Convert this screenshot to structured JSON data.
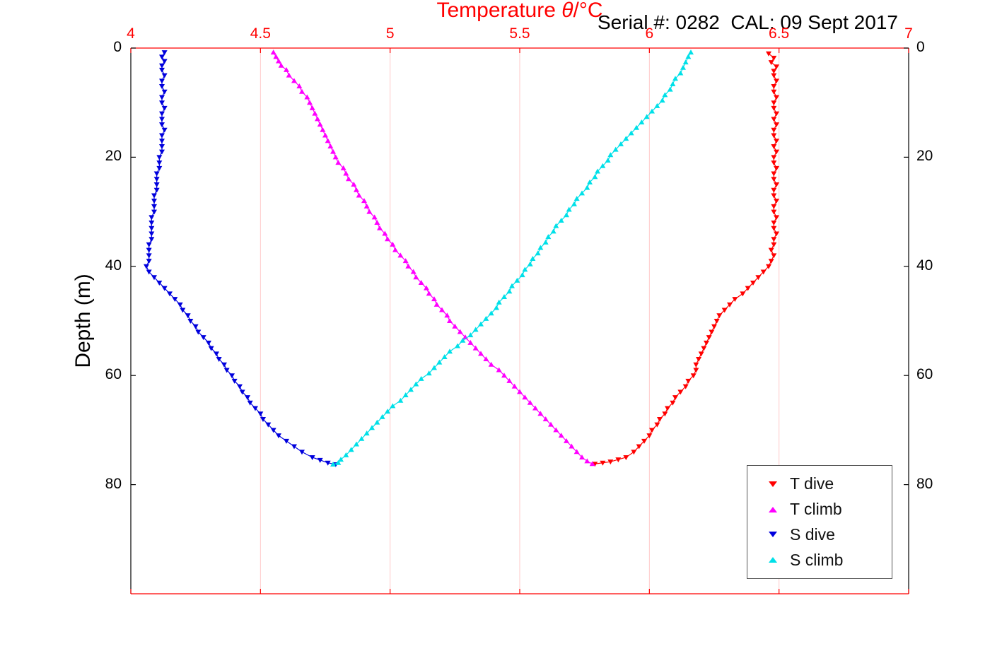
{
  "title": {
    "prefix": "Temperature ",
    "theta": "θ",
    "suffix": "/°C"
  },
  "annotation": "Serial #: 0282  CAL: 09 Sept 2017",
  "axes": {
    "ylabel": "Depth (m)",
    "x_ticks": [
      4,
      4.5,
      5,
      5.5,
      6,
      6.5,
      7
    ],
    "y_ticks": [
      0,
      20,
      40,
      60,
      80
    ],
    "x_range": [
      4,
      7
    ],
    "y_range": [
      0,
      100
    ],
    "x_color": "#ff0000",
    "y_color": "#000000",
    "grid_color": "#ffc9c9"
  },
  "chart_data": {
    "type": "scatter",
    "title": "Temperature θ/°C",
    "xlabel": "Temperature θ/°C",
    "ylabel": "Depth (m)",
    "xlim": [
      4,
      7
    ],
    "ylim": [
      0,
      100
    ],
    "y_inverted": true,
    "grid": "vertical-only",
    "legend_position": "lower right",
    "series": [
      {
        "name": "T dive",
        "color": "#ff0000",
        "marker": "down",
        "points": [
          [
            6.46,
            1
          ],
          [
            6.48,
            1.8
          ],
          [
            6.47,
            2.6
          ],
          [
            6.49,
            3.4
          ],
          [
            6.48,
            4.2
          ],
          [
            6.48,
            5
          ],
          [
            6.49,
            6
          ],
          [
            6.48,
            7
          ],
          [
            6.48,
            8
          ],
          [
            6.49,
            9
          ],
          [
            6.48,
            10
          ],
          [
            6.48,
            11
          ],
          [
            6.49,
            12
          ],
          [
            6.48,
            13
          ],
          [
            6.49,
            14
          ],
          [
            6.48,
            15
          ],
          [
            6.48,
            16
          ],
          [
            6.49,
            17
          ],
          [
            6.48,
            18
          ],
          [
            6.49,
            19
          ],
          [
            6.48,
            20
          ],
          [
            6.48,
            21
          ],
          [
            6.49,
            22
          ],
          [
            6.48,
            23
          ],
          [
            6.48,
            24
          ],
          [
            6.49,
            25
          ],
          [
            6.48,
            26
          ],
          [
            6.48,
            27
          ],
          [
            6.49,
            28
          ],
          [
            6.48,
            29
          ],
          [
            6.48,
            30
          ],
          [
            6.49,
            31
          ],
          [
            6.48,
            32
          ],
          [
            6.48,
            33
          ],
          [
            6.49,
            34
          ],
          [
            6.48,
            35
          ],
          [
            6.48,
            36
          ],
          [
            6.47,
            37
          ],
          [
            6.48,
            38
          ],
          [
            6.47,
            39
          ],
          [
            6.46,
            40
          ],
          [
            6.44,
            41
          ],
          [
            6.42,
            42
          ],
          [
            6.4,
            43
          ],
          [
            6.38,
            44
          ],
          [
            6.36,
            45
          ],
          [
            6.33,
            46
          ],
          [
            6.31,
            47
          ],
          [
            6.29,
            48
          ],
          [
            6.27,
            49
          ],
          [
            6.26,
            50
          ],
          [
            6.25,
            51
          ],
          [
            6.24,
            52
          ],
          [
            6.23,
            53
          ],
          [
            6.22,
            54
          ],
          [
            6.21,
            55
          ],
          [
            6.2,
            56
          ],
          [
            6.19,
            57
          ],
          [
            6.18,
            58
          ],
          [
            6.18,
            59
          ],
          [
            6.17,
            60
          ],
          [
            6.15,
            61
          ],
          [
            6.14,
            62
          ],
          [
            6.12,
            63
          ],
          [
            6.1,
            64
          ],
          [
            6.09,
            65
          ],
          [
            6.07,
            66
          ],
          [
            6.06,
            67
          ],
          [
            6.04,
            68
          ],
          [
            6.03,
            69
          ],
          [
            6.01,
            70
          ],
          [
            6.0,
            71
          ],
          [
            5.98,
            72
          ],
          [
            5.96,
            73
          ],
          [
            5.94,
            74
          ],
          [
            5.91,
            75
          ],
          [
            5.88,
            75.4
          ],
          [
            5.85,
            75.8
          ],
          [
            5.82,
            76
          ],
          [
            5.79,
            76.2
          ]
        ]
      },
      {
        "name": "T climb",
        "color": "#ff00ff",
        "marker": "up",
        "points": [
          [
            4.55,
            0.8
          ],
          [
            4.56,
            1.6
          ],
          [
            4.57,
            2.4
          ],
          [
            4.58,
            3.2
          ],
          [
            4.6,
            4
          ],
          [
            4.61,
            5
          ],
          [
            4.63,
            6
          ],
          [
            4.65,
            7
          ],
          [
            4.66,
            8
          ],
          [
            4.68,
            9
          ],
          [
            4.69,
            10
          ],
          [
            4.7,
            11
          ],
          [
            4.71,
            12
          ],
          [
            4.72,
            13
          ],
          [
            4.73,
            14
          ],
          [
            4.74,
            15
          ],
          [
            4.75,
            16
          ],
          [
            4.76,
            17
          ],
          [
            4.77,
            18
          ],
          [
            4.78,
            19
          ],
          [
            4.79,
            20
          ],
          [
            4.8,
            21
          ],
          [
            4.82,
            22
          ],
          [
            4.83,
            23
          ],
          [
            4.84,
            24
          ],
          [
            4.86,
            25
          ],
          [
            4.87,
            26
          ],
          [
            4.88,
            27
          ],
          [
            4.9,
            28
          ],
          [
            4.91,
            29
          ],
          [
            4.92,
            30
          ],
          [
            4.94,
            31
          ],
          [
            4.95,
            32
          ],
          [
            4.96,
            33
          ],
          [
            4.98,
            34
          ],
          [
            4.99,
            35
          ],
          [
            5.01,
            36
          ],
          [
            5.02,
            37
          ],
          [
            5.04,
            38
          ],
          [
            5.06,
            39
          ],
          [
            5.07,
            40
          ],
          [
            5.09,
            41
          ],
          [
            5.1,
            42
          ],
          [
            5.12,
            43
          ],
          [
            5.14,
            44
          ],
          [
            5.15,
            45
          ],
          [
            5.17,
            46
          ],
          [
            5.18,
            47
          ],
          [
            5.2,
            48
          ],
          [
            5.22,
            49
          ],
          [
            5.23,
            50
          ],
          [
            5.25,
            51
          ],
          [
            5.27,
            52
          ],
          [
            5.29,
            53
          ],
          [
            5.31,
            54
          ],
          [
            5.33,
            55
          ],
          [
            5.35,
            56
          ],
          [
            5.37,
            57
          ],
          [
            5.39,
            58
          ],
          [
            5.42,
            59
          ],
          [
            5.44,
            60
          ],
          [
            5.46,
            61
          ],
          [
            5.48,
            62
          ],
          [
            5.5,
            63
          ],
          [
            5.52,
            64
          ],
          [
            5.54,
            65
          ],
          [
            5.56,
            66
          ],
          [
            5.58,
            67
          ],
          [
            5.6,
            68
          ],
          [
            5.62,
            69
          ],
          [
            5.64,
            70
          ],
          [
            5.66,
            71
          ],
          [
            5.68,
            72
          ],
          [
            5.7,
            73
          ],
          [
            5.72,
            74
          ],
          [
            5.74,
            75
          ],
          [
            5.76,
            75.7
          ],
          [
            5.78,
            76.2
          ]
        ]
      },
      {
        "name": "S dive",
        "color": "#0000dd",
        "marker": "down",
        "points": [
          [
            4.13,
            0.8
          ],
          [
            4.12,
            1.6
          ],
          [
            4.13,
            2.4
          ],
          [
            4.12,
            3.2
          ],
          [
            4.12,
            4
          ],
          [
            4.13,
            5
          ],
          [
            4.12,
            6
          ],
          [
            4.12,
            7
          ],
          [
            4.13,
            8
          ],
          [
            4.12,
            9
          ],
          [
            4.12,
            10
          ],
          [
            4.13,
            11
          ],
          [
            4.12,
            12
          ],
          [
            4.12,
            13
          ],
          [
            4.12,
            14
          ],
          [
            4.13,
            15
          ],
          [
            4.12,
            16
          ],
          [
            4.12,
            17
          ],
          [
            4.12,
            18
          ],
          [
            4.12,
            19
          ],
          [
            4.11,
            20
          ],
          [
            4.11,
            21
          ],
          [
            4.11,
            22
          ],
          [
            4.1,
            23
          ],
          [
            4.1,
            24
          ],
          [
            4.1,
            25
          ],
          [
            4.1,
            26
          ],
          [
            4.09,
            27
          ],
          [
            4.09,
            28
          ],
          [
            4.09,
            29
          ],
          [
            4.09,
            30
          ],
          [
            4.08,
            31
          ],
          [
            4.08,
            32
          ],
          [
            4.08,
            33
          ],
          [
            4.08,
            34
          ],
          [
            4.08,
            35
          ],
          [
            4.07,
            36
          ],
          [
            4.07,
            37
          ],
          [
            4.07,
            38
          ],
          [
            4.07,
            39
          ],
          [
            4.06,
            40
          ],
          [
            4.07,
            41
          ],
          [
            4.09,
            42
          ],
          [
            4.11,
            43
          ],
          [
            4.13,
            44
          ],
          [
            4.15,
            45
          ],
          [
            4.17,
            46
          ],
          [
            4.19,
            47
          ],
          [
            4.2,
            48
          ],
          [
            4.22,
            49
          ],
          [
            4.23,
            50
          ],
          [
            4.25,
            51
          ],
          [
            4.26,
            52
          ],
          [
            4.28,
            53
          ],
          [
            4.3,
            54
          ],
          [
            4.31,
            55
          ],
          [
            4.33,
            56
          ],
          [
            4.34,
            57
          ],
          [
            4.36,
            58
          ],
          [
            4.37,
            59
          ],
          [
            4.39,
            60
          ],
          [
            4.4,
            61
          ],
          [
            4.42,
            62
          ],
          [
            4.43,
            63
          ],
          [
            4.45,
            64
          ],
          [
            4.46,
            65
          ],
          [
            4.48,
            66
          ],
          [
            4.5,
            67
          ],
          [
            4.51,
            68
          ],
          [
            4.53,
            69
          ],
          [
            4.55,
            70
          ],
          [
            4.57,
            71
          ],
          [
            4.6,
            72
          ],
          [
            4.63,
            73
          ],
          [
            4.66,
            74
          ],
          [
            4.7,
            75
          ],
          [
            4.73,
            75.5
          ],
          [
            4.76,
            76
          ],
          [
            4.79,
            76.3
          ]
        ]
      },
      {
        "name": "S climb",
        "color": "#00e0e8",
        "marker": "up",
        "points": [
          [
            6.16,
            0.8
          ],
          [
            6.15,
            1.6
          ],
          [
            6.14,
            2.6
          ],
          [
            6.13,
            3.6
          ],
          [
            6.12,
            4.6
          ],
          [
            6.1,
            5.6
          ],
          [
            6.09,
            6.6
          ],
          [
            6.08,
            7.6
          ],
          [
            6.06,
            8.6
          ],
          [
            6.05,
            9.6
          ],
          [
            6.03,
            10.6
          ],
          [
            6.01,
            11.6
          ],
          [
            5.99,
            12.6
          ],
          [
            5.97,
            13.6
          ],
          [
            5.95,
            14.6
          ],
          [
            5.93,
            15.6
          ],
          [
            5.91,
            16.6
          ],
          [
            5.89,
            17.6
          ],
          [
            5.87,
            18.6
          ],
          [
            5.85,
            19.6
          ],
          [
            5.84,
            20.6
          ],
          [
            5.82,
            21.6
          ],
          [
            5.8,
            22.6
          ],
          [
            5.79,
            23.6
          ],
          [
            5.77,
            24.6
          ],
          [
            5.76,
            25.6
          ],
          [
            5.74,
            26.6
          ],
          [
            5.72,
            27.6
          ],
          [
            5.71,
            28.6
          ],
          [
            5.69,
            29.6
          ],
          [
            5.68,
            30.6
          ],
          [
            5.66,
            31.6
          ],
          [
            5.64,
            32.6
          ],
          [
            5.63,
            33.6
          ],
          [
            5.61,
            34.6
          ],
          [
            5.6,
            35.6
          ],
          [
            5.58,
            36.6
          ],
          [
            5.57,
            37.6
          ],
          [
            5.55,
            38.6
          ],
          [
            5.54,
            39.6
          ],
          [
            5.52,
            40.6
          ],
          [
            5.51,
            41.6
          ],
          [
            5.49,
            42.6
          ],
          [
            5.47,
            43.6
          ],
          [
            5.46,
            44.6
          ],
          [
            5.44,
            45.6
          ],
          [
            5.42,
            46.6
          ],
          [
            5.41,
            47.6
          ],
          [
            5.39,
            48.6
          ],
          [
            5.37,
            49.6
          ],
          [
            5.35,
            50.6
          ],
          [
            5.33,
            51.6
          ],
          [
            5.31,
            52.6
          ],
          [
            5.28,
            53.6
          ],
          [
            5.26,
            54.6
          ],
          [
            5.23,
            55.6
          ],
          [
            5.21,
            56.6
          ],
          [
            5.19,
            57.6
          ],
          [
            5.17,
            58.6
          ],
          [
            5.15,
            59.6
          ],
          [
            5.12,
            60.6
          ],
          [
            5.1,
            61.6
          ],
          [
            5.08,
            62.6
          ],
          [
            5.06,
            63.6
          ],
          [
            5.04,
            64.6
          ],
          [
            5.01,
            65.6
          ],
          [
            4.99,
            66.6
          ],
          [
            4.97,
            67.6
          ],
          [
            4.95,
            68.6
          ],
          [
            4.93,
            69.6
          ],
          [
            4.91,
            70.6
          ],
          [
            4.89,
            71.6
          ],
          [
            4.87,
            72.6
          ],
          [
            4.85,
            73.6
          ],
          [
            4.83,
            74.6
          ],
          [
            4.81,
            75.4
          ],
          [
            4.8,
            76
          ],
          [
            4.78,
            76.3
          ]
        ]
      }
    ]
  },
  "legend": {
    "entries": [
      "T dive",
      "T climb",
      "S dive",
      "S climb"
    ]
  }
}
